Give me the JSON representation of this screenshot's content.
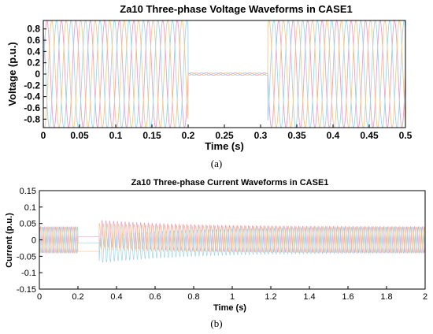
{
  "chart_data": [
    {
      "type": "line",
      "title": "Za10 Three-phase Voltage Waveforms in CASE1",
      "xlabel": "Time (s)",
      "ylabel": "Voltage (p.u.)",
      "xlim": [
        0,
        0.5
      ],
      "ylim": [
        -0.95,
        0.95
      ],
      "xticks": [
        "0",
        "0.05",
        "0.1",
        "0.15",
        "0.2",
        "0.25",
        "0.3",
        "0.35",
        "0.4",
        "0.45",
        "0.5"
      ],
      "yticks": [
        "0.8",
        "0.6",
        "0.4",
        "0.2",
        "0",
        "-0.2",
        "-0.4",
        "-0.6",
        "-0.8"
      ],
      "ytick_values": [
        0.8,
        0.6,
        0.4,
        0.2,
        0,
        -0.2,
        -0.4,
        -0.6,
        -0.8
      ],
      "frequency_hz": 50,
      "amplitude": 0.95,
      "fault_window": [
        0.2,
        0.31
      ],
      "fault_residual_amplitude": 0.02,
      "series_colors": [
        "#e8a0c8",
        "#9fd6ec",
        "#f2c890"
      ],
      "caption": "(a)"
    },
    {
      "type": "line",
      "title": "Za10 Three-phase Current Waveforms in CASE1",
      "xlabel": "Time (s)",
      "ylabel": "Current (p.u.)",
      "xlim": [
        0,
        2
      ],
      "ylim": [
        -0.15,
        0.15
      ],
      "xticks": [
        "0",
        "0.2",
        "0.4",
        "0.6",
        "0.8",
        "1",
        "1.2",
        "1.4",
        "1.6",
        "1.8",
        "2"
      ],
      "yticks": [
        "0.15",
        "0.1",
        "0.05",
        "0",
        "-0.05",
        "-0.1",
        "-0.15"
      ],
      "ytick_values": [
        0.15,
        0.1,
        0.05,
        0,
        -0.05,
        -0.1,
        -0.15
      ],
      "frequency_hz": 50,
      "prefault_amplitude": 0.04,
      "fault_window": [
        0.2,
        0.31
      ],
      "fault_levels": [
        0.01,
        -0.01,
        -0.035
      ],
      "postfault_amplitude": 0.04,
      "postfault_initial_offsets": [
        0.02,
        -0.03,
        0.01
      ],
      "decay_time_constant": 0.45,
      "series_colors": [
        "#e8a0c8",
        "#9fd6ec",
        "#f2c890"
      ],
      "caption": "(b)"
    }
  ]
}
